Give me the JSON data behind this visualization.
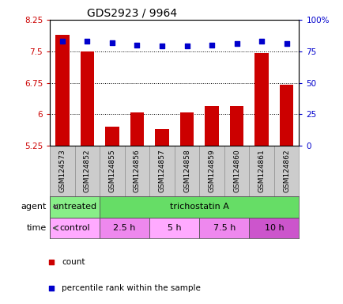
{
  "title": "GDS2923 / 9964",
  "samples": [
    "GSM124573",
    "GSM124852",
    "GSM124855",
    "GSM124856",
    "GSM124857",
    "GSM124858",
    "GSM124859",
    "GSM124860",
    "GSM124861",
    "GSM124862"
  ],
  "count_values": [
    7.9,
    7.5,
    5.7,
    6.05,
    5.65,
    6.05,
    6.2,
    6.2,
    7.45,
    6.7
  ],
  "percentile_values": [
    83,
    83,
    82,
    80,
    79,
    79,
    80,
    81,
    83,
    81
  ],
  "ylim_left": [
    5.25,
    8.25
  ],
  "ylim_right": [
    0,
    100
  ],
  "yticks_left": [
    5.25,
    6.0,
    6.75,
    7.5,
    8.25
  ],
  "yticks_right": [
    0,
    25,
    50,
    75,
    100
  ],
  "ytick_labels_left": [
    "5.25",
    "6",
    "6.75",
    "7.5",
    "8.25"
  ],
  "ytick_labels_right": [
    "0",
    "25",
    "50",
    "75",
    "100%"
  ],
  "bar_color": "#CC0000",
  "dot_color": "#0000CC",
  "background_color": "#ffffff",
  "grid_color": "#000000",
  "xtick_bg_color": "#cccccc",
  "agent_row": [
    {
      "label": "untreated",
      "start": 0,
      "end": 2,
      "color": "#88EE88"
    },
    {
      "label": "trichostatin A",
      "start": 2,
      "end": 10,
      "color": "#66DD66"
    }
  ],
  "time_row": [
    {
      "label": "control",
      "start": 0,
      "end": 2,
      "color": "#FFAAFF"
    },
    {
      "label": "2.5 h",
      "start": 2,
      "end": 4,
      "color": "#EE88EE"
    },
    {
      "label": "5 h",
      "start": 4,
      "end": 6,
      "color": "#FFAAFF"
    },
    {
      "label": "7.5 h",
      "start": 6,
      "end": 8,
      "color": "#EE88EE"
    },
    {
      "label": "10 h",
      "start": 8,
      "end": 10,
      "color": "#CC55CC"
    }
  ],
  "legend_items": [
    {
      "label": "count",
      "color": "#CC0000"
    },
    {
      "label": "percentile rank within the sample",
      "color": "#0000CC"
    }
  ]
}
